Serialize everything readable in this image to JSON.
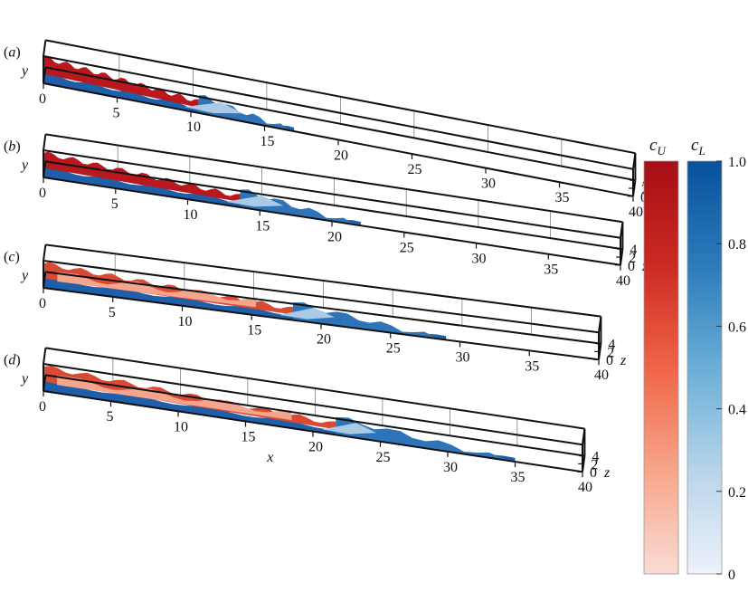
{
  "panels": [
    {
      "label": "(a)",
      "x_ticks": [
        "0",
        "5",
        "10",
        "15",
        "20",
        "25",
        "30",
        "35",
        "40"
      ],
      "z_ticks": [
        "0",
        "2",
        "4"
      ],
      "front_extent": 17
    },
    {
      "label": "(b)",
      "x_ticks": [
        "0",
        "5",
        "10",
        "15",
        "20",
        "25",
        "30",
        "35",
        "40"
      ],
      "z_ticks": [
        "0",
        "2",
        "4"
      ],
      "front_extent": 22
    },
    {
      "label": "(c)",
      "x_ticks": [
        "0",
        "5",
        "10",
        "15",
        "20",
        "25",
        "30",
        "35",
        "40"
      ],
      "z_ticks": [
        "0",
        "2",
        "4"
      ],
      "front_extent": 29
    },
    {
      "label": "(d)",
      "x_ticks": [
        "0",
        "5",
        "10",
        "15",
        "20",
        "25",
        "30",
        "35",
        "40"
      ],
      "z_ticks": [
        "0",
        "2",
        "4"
      ],
      "front_extent": 35
    }
  ],
  "axis_labels": {
    "y": "y",
    "z": "z",
    "x": "x"
  },
  "colorbars": {
    "upper": {
      "symbol": "c",
      "subscript": "U",
      "colors": [
        "#f9dcd3",
        "#f7a58a",
        "#ef6548",
        "#cb2a22",
        "#a50f15"
      ]
    },
    "lower": {
      "symbol": "c",
      "subscript": "L",
      "colors": [
        "#eef2fb",
        "#b7d4ea",
        "#6aaed6",
        "#2b7bba",
        "#08519c"
      ]
    },
    "ticks": [
      "0",
      "0.2",
      "0.4",
      "0.6",
      "0.8",
      "1.0"
    ],
    "range": [
      0,
      1
    ]
  }
}
